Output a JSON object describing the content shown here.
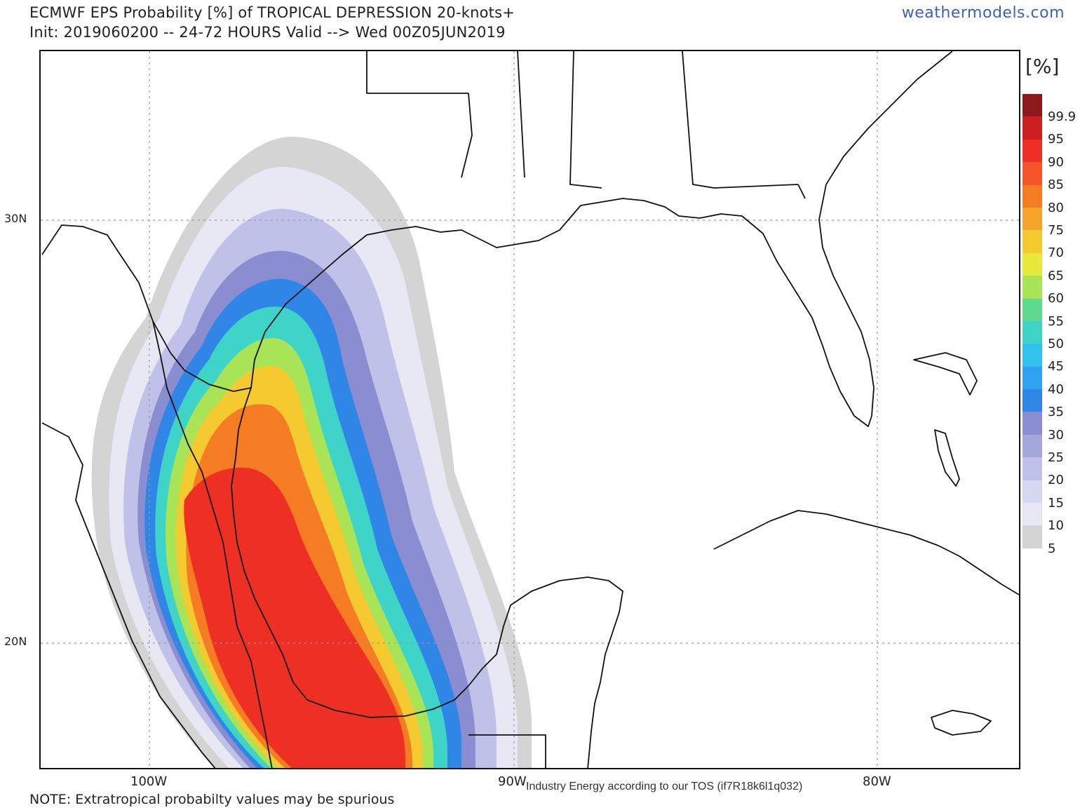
{
  "header": {
    "title_line1": "ECMWF EPS Probability [%] of TROPICAL DEPRESSION 20-knots+",
    "title_line2": "Init: 2019060200 -- 24-72 HOURS Valid --> Wed 00Z05JUN2019",
    "brand": "weathermodels.com"
  },
  "map": {
    "lat_labels": [
      "30N",
      "20N"
    ],
    "lon_labels": [
      "100W",
      "90W",
      "80W"
    ]
  },
  "legend": {
    "unit": "[%]",
    "levels": [
      "99.9",
      "95",
      "90",
      "85",
      "80",
      "75",
      "70",
      "65",
      "60",
      "55",
      "50",
      "45",
      "40",
      "35",
      "30",
      "25",
      "20",
      "15",
      "10",
      "5"
    ],
    "colors": [
      "#8b1a1a",
      "#cc2020",
      "#ee3024",
      "#f6552b",
      "#f57c22",
      "#f6a52b",
      "#f5c930",
      "#e6e83a",
      "#a8e455",
      "#5fd98c",
      "#3fd4c8",
      "#32c2ee",
      "#2fa2f0",
      "#2f86e6",
      "#8a8ed0",
      "#a4a7dc",
      "#bfc1e8",
      "#d6d8f0",
      "#e8e8f4",
      "#d4d4d4"
    ]
  },
  "footer": {
    "note": "NOTE: Extratropical probabilty values may be spurious",
    "tos": "Industry Energy according to our TOS (if7R18k6l1q032)"
  }
}
